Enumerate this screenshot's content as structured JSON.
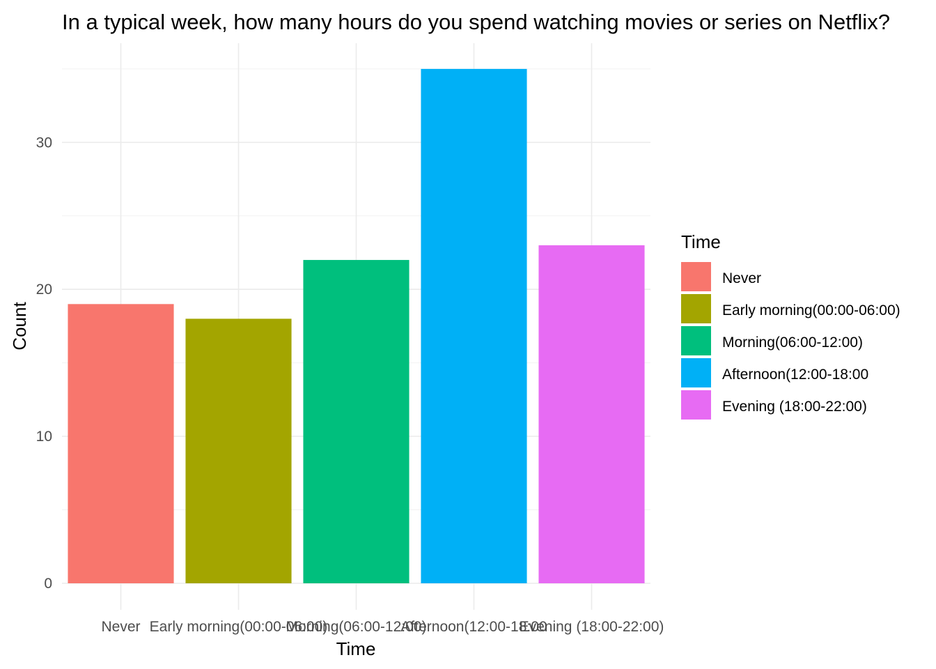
{
  "chart_data": {
    "type": "bar",
    "title": "In a typical week, how many hours do you spend watching movies or series on Netflix?",
    "xlabel": "Time",
    "ylabel": "Count",
    "categories": [
      "Never",
      "Early morning(00:00-06:00)",
      "Morning(06:00-12:00)",
      "Afternoon(12:00-18:00",
      "Evening (18:00-22:00)"
    ],
    "values": [
      19,
      18,
      22,
      35,
      23
    ],
    "colors": [
      "#F8766D",
      "#A3A500",
      "#00BF7D",
      "#00B0F6",
      "#E76BF3"
    ],
    "ylim": [
      0,
      36.75
    ],
    "yticks": [
      0,
      10,
      20,
      30
    ],
    "grid": true,
    "legend": {
      "title": "Time",
      "placement": "right",
      "entries": [
        "Never",
        "Early morning(00:00-06:00)",
        "Morning(06:00-12:00)",
        "Afternoon(12:00-18:00",
        "Evening (18:00-22:00)"
      ]
    }
  }
}
